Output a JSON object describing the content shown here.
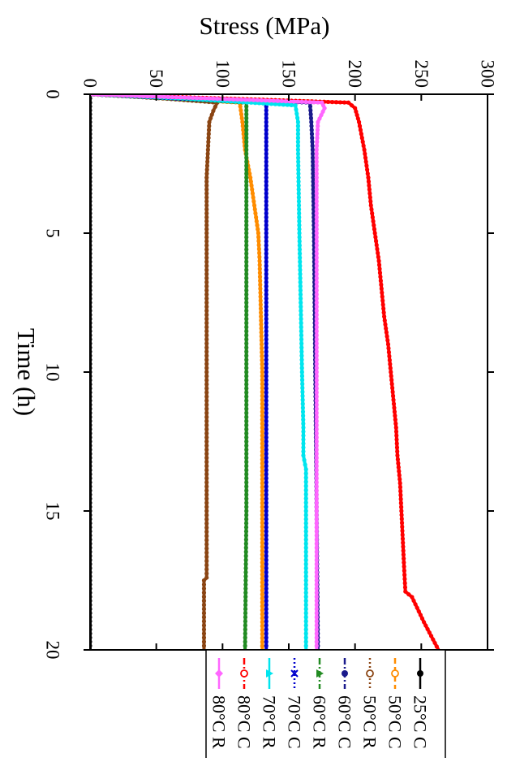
{
  "chart_data": {
    "type": "line",
    "title": "",
    "xlabel": "Time (h)",
    "ylabel": "Stress (MPa)",
    "xlim": [
      0,
      20
    ],
    "ylim": [
      0,
      300
    ],
    "xticks": [
      0,
      5,
      10,
      15,
      20
    ],
    "yticks": [
      0,
      50,
      100,
      150,
      200,
      250,
      300
    ],
    "grid": false,
    "orientation": "rotated 90 degrees clockwise: time axis runs top to bottom, stress axis runs left to right",
    "legend_placement": "bottom-right",
    "series": [
      {
        "name": "25°C C",
        "color": "#000000",
        "marker": "filled-circle",
        "dash": "solid",
        "x": [
          0,
          0.3,
          1,
          3,
          5,
          10,
          15,
          20
        ],
        "y": [
          0,
          0,
          0,
          0,
          0,
          0,
          0,
          0
        ]
      },
      {
        "name": "50°C C",
        "color": "#ff8c00",
        "marker": "open-circle",
        "dash": "dash",
        "x": [
          0,
          0.15,
          0.3,
          1,
          2,
          3,
          4,
          5,
          6,
          8,
          10,
          12,
          15,
          17,
          20
        ],
        "y": [
          0,
          60,
          113,
          115,
          117,
          121,
          124,
          127,
          128,
          129,
          130,
          130,
          130,
          130,
          130
        ]
      },
      {
        "name": "50°C R",
        "color": "#8b4513",
        "marker": "open-circle",
        "dash": "dot",
        "x": [
          0,
          0.15,
          0.3,
          0.6,
          1,
          2,
          3,
          5,
          10,
          15,
          17.4,
          17.5,
          20
        ],
        "y": [
          0,
          55,
          96,
          93,
          90,
          89,
          88,
          88,
          88,
          88,
          88,
          86,
          86
        ]
      },
      {
        "name": "60°C C",
        "color": "#1a1a8c",
        "marker": "filled-circle",
        "dash": "dashdot",
        "x": [
          0,
          0.15,
          0.3,
          1,
          2,
          5,
          10,
          15,
          20
        ],
        "y": [
          0,
          80,
          166,
          167,
          168,
          169,
          170,
          171,
          172
        ]
      },
      {
        "name": "60°C R",
        "color": "#228b22",
        "marker": "filled-triangle",
        "dash": "dashdot",
        "x": [
          0,
          0.15,
          0.3,
          1,
          2,
          5,
          10,
          15,
          20
        ],
        "y": [
          0,
          60,
          118,
          118,
          118,
          118,
          118,
          118,
          117
        ]
      },
      {
        "name": "70°C C",
        "color": "#0000cd",
        "marker": "x",
        "dash": "dot",
        "x": [
          0,
          0.15,
          0.3,
          1,
          2,
          5,
          10,
          15,
          20
        ],
        "y": [
          0,
          65,
          133,
          133,
          133,
          133,
          133,
          133,
          133
        ]
      },
      {
        "name": "70°C R",
        "color": "#00e5ee",
        "marker": "filled-triangle",
        "dash": "solid",
        "x": [
          0,
          0.15,
          0.4,
          1,
          2,
          5,
          10,
          12,
          13,
          13.5,
          15,
          20
        ],
        "y": [
          0,
          70,
          155,
          157,
          157,
          158,
          160,
          161,
          161,
          163,
          163,
          163
        ]
      },
      {
        "name": "80°C C",
        "color": "#ff0000",
        "marker": "open-circle",
        "dash": "dashdot",
        "x": [
          0,
          0.15,
          0.3,
          0.5,
          1,
          2,
          3,
          4,
          5,
          6,
          7,
          8,
          9,
          10,
          11,
          12,
          13,
          14,
          15,
          16,
          17,
          17.9,
          18.1,
          19,
          20
        ],
        "y": [
          0,
          100,
          195,
          200,
          203,
          207,
          210,
          212,
          215,
          218,
          220,
          222,
          225,
          227,
          229,
          231,
          232,
          234,
          235,
          236,
          237,
          238,
          243,
          252,
          263
        ]
      },
      {
        "name": "80°C R",
        "color": "#ff66ff",
        "marker": "filled-diamond",
        "dash": "solid",
        "x": [
          0,
          0.15,
          0.3,
          0.5,
          1,
          2,
          5,
          10,
          15,
          20
        ],
        "y": [
          0,
          90,
          175,
          177,
          172,
          171,
          171,
          171,
          171,
          171
        ]
      }
    ]
  }
}
